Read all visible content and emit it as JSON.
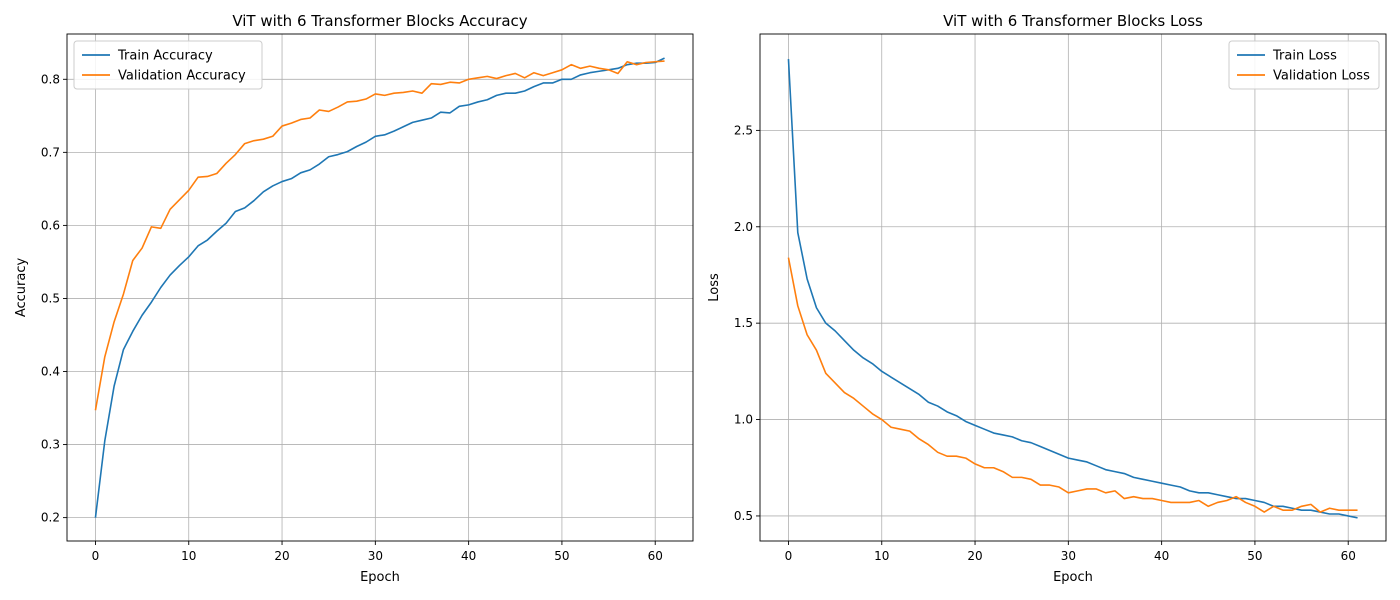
{
  "chart_data": [
    {
      "type": "line",
      "title": "ViT with 6 Transformer Blocks Accuracy",
      "xlabel": "Epoch",
      "ylabel": "Accuracy",
      "xlim": [
        -3.05,
        64.05
      ],
      "ylim": [
        0.168,
        0.862
      ],
      "xticks": [
        0,
        10,
        20,
        30,
        40,
        50,
        60
      ],
      "yticks": [
        0.2,
        0.3,
        0.4,
        0.5,
        0.6,
        0.7,
        0.8
      ],
      "ytick_decimals": 1,
      "grid": true,
      "legend_position": "top-left",
      "series": [
        {
          "name": "Train Accuracy",
          "color": "#1f77b4",
          "values": [
            0.2,
            0.305,
            0.38,
            0.43,
            0.455,
            0.477,
            0.495,
            0.515,
            0.532,
            0.545,
            0.557,
            0.572,
            0.58,
            0.592,
            0.603,
            0.619,
            0.624,
            0.634,
            0.646,
            0.654,
            0.66,
            0.664,
            0.672,
            0.676,
            0.684,
            0.694,
            0.697,
            0.701,
            0.708,
            0.714,
            0.722,
            0.724,
            0.729,
            0.735,
            0.741,
            0.744,
            0.747,
            0.755,
            0.754,
            0.763,
            0.765,
            0.769,
            0.772,
            0.778,
            0.781,
            0.781,
            0.784,
            0.79,
            0.795,
            0.795,
            0.8,
            0.8,
            0.806,
            0.809,
            0.811,
            0.813,
            0.815,
            0.82,
            0.822,
            0.822,
            0.823,
            0.829
          ]
        },
        {
          "name": "Validation Accuracy",
          "color": "#ff7f0e",
          "values": [
            0.347,
            0.42,
            0.468,
            0.506,
            0.552,
            0.569,
            0.598,
            0.596,
            0.622,
            0.635,
            0.648,
            0.666,
            0.667,
            0.671,
            0.685,
            0.697,
            0.712,
            0.716,
            0.718,
            0.722,
            0.736,
            0.74,
            0.745,
            0.747,
            0.758,
            0.756,
            0.762,
            0.769,
            0.77,
            0.773,
            0.78,
            0.778,
            0.781,
            0.782,
            0.784,
            0.781,
            0.794,
            0.793,
            0.796,
            0.795,
            0.8,
            0.802,
            0.804,
            0.801,
            0.805,
            0.808,
            0.802,
            0.809,
            0.805,
            0.809,
            0.813,
            0.82,
            0.815,
            0.818,
            0.815,
            0.813,
            0.808,
            0.824,
            0.82,
            0.823,
            0.824,
            0.825
          ]
        }
      ]
    },
    {
      "type": "line",
      "title": "ViT with 6 Transformer Blocks Loss",
      "xlabel": "Epoch",
      "ylabel": "Loss",
      "xlim": [
        -3.05,
        64.05
      ],
      "ylim": [
        0.37,
        3.0
      ],
      "xticks": [
        0,
        10,
        20,
        30,
        40,
        50,
        60
      ],
      "yticks": [
        0.5,
        1.0,
        1.5,
        2.0,
        2.5
      ],
      "ytick_decimals": 1,
      "grid": true,
      "legend_position": "top-right",
      "series": [
        {
          "name": "Train Loss",
          "color": "#1f77b4",
          "values": [
            2.87,
            1.97,
            1.73,
            1.58,
            1.5,
            1.46,
            1.41,
            1.36,
            1.32,
            1.29,
            1.25,
            1.22,
            1.19,
            1.16,
            1.13,
            1.09,
            1.07,
            1.04,
            1.02,
            0.99,
            0.97,
            0.95,
            0.93,
            0.92,
            0.91,
            0.89,
            0.88,
            0.86,
            0.84,
            0.82,
            0.8,
            0.79,
            0.78,
            0.76,
            0.74,
            0.73,
            0.72,
            0.7,
            0.69,
            0.68,
            0.67,
            0.66,
            0.65,
            0.63,
            0.62,
            0.62,
            0.61,
            0.6,
            0.59,
            0.59,
            0.58,
            0.57,
            0.55,
            0.55,
            0.54,
            0.53,
            0.53,
            0.52,
            0.51,
            0.51,
            0.5,
            0.49
          ]
        },
        {
          "name": "Validation Loss",
          "color": "#ff7f0e",
          "values": [
            1.84,
            1.59,
            1.44,
            1.36,
            1.24,
            1.19,
            1.14,
            1.11,
            1.07,
            1.03,
            1.0,
            0.96,
            0.95,
            0.94,
            0.9,
            0.87,
            0.83,
            0.81,
            0.81,
            0.8,
            0.77,
            0.75,
            0.75,
            0.73,
            0.7,
            0.7,
            0.69,
            0.66,
            0.66,
            0.65,
            0.62,
            0.63,
            0.64,
            0.64,
            0.62,
            0.63,
            0.59,
            0.6,
            0.59,
            0.59,
            0.58,
            0.57,
            0.57,
            0.57,
            0.58,
            0.55,
            0.57,
            0.58,
            0.6,
            0.57,
            0.55,
            0.52,
            0.55,
            0.53,
            0.53,
            0.55,
            0.56,
            0.52,
            0.54,
            0.53,
            0.53,
            0.53
          ]
        }
      ]
    }
  ]
}
